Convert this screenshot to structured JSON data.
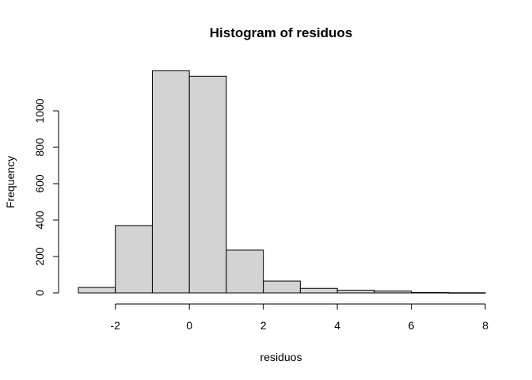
{
  "chart_data": {
    "type": "bar",
    "title": "Histogram of residuos",
    "xlabel": "residuos",
    "ylabel": "Frequency",
    "bins": [
      {
        "x0": -3,
        "x1": -2,
        "count": 30
      },
      {
        "x0": -2,
        "x1": -1,
        "count": 370
      },
      {
        "x0": -1,
        "x1": 0,
        "count": 1220
      },
      {
        "x0": 0,
        "x1": 1,
        "count": 1190
      },
      {
        "x0": 1,
        "x1": 2,
        "count": 235
      },
      {
        "x0": 2,
        "x1": 3,
        "count": 65
      },
      {
        "x0": 3,
        "x1": 4,
        "count": 25
      },
      {
        "x0": 4,
        "x1": 5,
        "count": 15
      },
      {
        "x0": 5,
        "x1": 6,
        "count": 10
      },
      {
        "x0": 6,
        "x1": 7,
        "count": 2
      },
      {
        "x0": 7,
        "x1": 8,
        "count": 1
      }
    ],
    "xticks": [
      -2,
      0,
      2,
      4,
      6,
      8
    ],
    "yticks": [
      0,
      200,
      400,
      600,
      800,
      1000
    ],
    "xlim": [
      -3,
      8
    ],
    "ylim": [
      0,
      1200
    ],
    "grid": false,
    "bar_color": "#d3d3d3",
    "edge_color": "#000000"
  }
}
